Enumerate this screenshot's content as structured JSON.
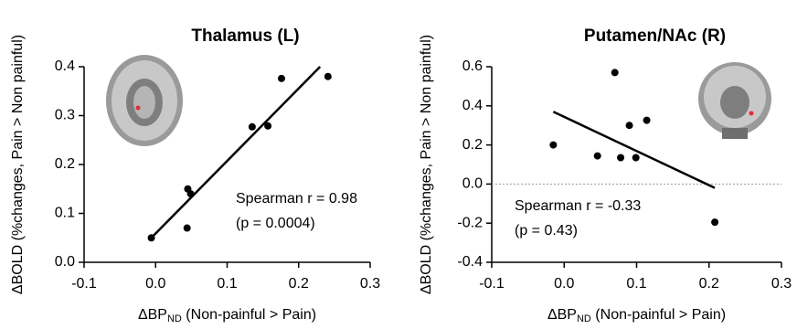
{
  "chart_data": [
    {
      "type": "scatter",
      "title": "Thalamus (L)",
      "x_label": {
        "main": "ΔBP",
        "sub": "ND",
        "rest": " (Non-painful > Pain)"
      },
      "y_label": "ΔBOLD (%changes, Pain > Non painful)",
      "x": [
        -0.006,
        0.044,
        0.045,
        0.049,
        0.135,
        0.157,
        0.176,
        0.241
      ],
      "values": [
        0.05,
        0.07,
        0.15,
        0.14,
        0.277,
        0.279,
        0.376,
        0.38
      ],
      "color": "#000000",
      "trend_line": {
        "x": [
          -0.006,
          0.23
        ],
        "y": [
          0.05,
          0.4
        ]
      },
      "annotations": [
        "Spearman r = 0.98",
        "(p = 0.0004)"
      ],
      "xlim": [
        -0.1,
        0.3
      ],
      "xticks": [
        -0.1,
        {
          "value": 0,
          "label": "0.0"
        },
        0.1,
        0.2,
        0.3
      ],
      "ylim": [
        0,
        0.4
      ],
      "yticks": [
        {
          "value": 0,
          "label": "0.0"
        },
        0.1,
        0.2,
        0.3,
        0.4
      ]
    },
    {
      "type": "scatter",
      "title": "Putamen/NAc (R)",
      "x_label": {
        "main": "ΔBP",
        "sub": "ND",
        "rest": " (Non-painful > Pain)"
      },
      "y_label": "ΔBOLD (%changes, Pain > Non painful)",
      "x": [
        -0.015,
        0.046,
        0.07,
        0.078,
        0.09,
        0.099,
        0.114,
        0.208
      ],
      "values": [
        0.2,
        0.144,
        0.57,
        0.135,
        0.3,
        0.135,
        0.326,
        -0.195
      ],
      "color": "#000000",
      "trend_line": {
        "x": [
          -0.015,
          0.208
        ],
        "y": [
          0.37,
          -0.02
        ]
      },
      "hline": 0,
      "annotations": [
        "Spearman r = -0.33",
        "(p = 0.43)"
      ],
      "xlim": [
        -0.1,
        0.3
      ],
      "xticks": [
        -0.1,
        {
          "value": 0,
          "label": "0.0"
        },
        0.1,
        0.2,
        0.3
      ],
      "ylim": [
        -0.4,
        0.6
      ],
      "yticks": [
        -0.4,
        -0.2,
        {
          "value": 0,
          "label": "0.0"
        },
        0.2,
        0.4,
        0.6
      ]
    }
  ]
}
